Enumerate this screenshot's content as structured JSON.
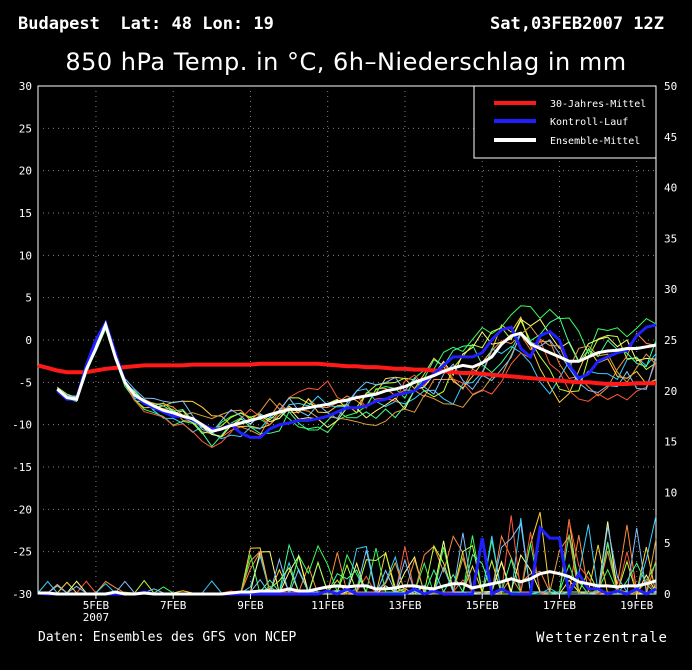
{
  "header": {
    "location": "Budapest  Lat: 48 Lon: 19",
    "run": "Sat,03FEB2007 12Z"
  },
  "footer": {
    "source": "Daten: Ensembles des GFS von NCEP",
    "brand": "Wetterzentrale"
  },
  "colors": {
    "background": "#000000",
    "climate": "#ff1a1a",
    "control": "#2020ff",
    "ensemble_mean": "#ffffff",
    "members": [
      "#ff8c3a",
      "#ffd23a",
      "#3aff5a",
      "#3ad0ff",
      "#c0ff3a",
      "#ff5a3a",
      "#ffff80",
      "#40ff90",
      "#e0a040",
      "#80c0ff"
    ]
  },
  "chart_data": {
    "type": "line",
    "title": "850 hPa Temp. in °C, 6h–Niederschlag in mm",
    "grid": true,
    "legend_position": "top-right",
    "x": {
      "type": "date",
      "start": "2007-02-03 12Z",
      "end": "2007-02-19 12Z",
      "step_hours": 6,
      "tick_labels": [
        "5FEB",
        "7FEB",
        "9FEB",
        "11FEB",
        "13FEB",
        "15FEB",
        "17FEB",
        "19FEB"
      ],
      "sublabel": "2007"
    },
    "y_left": {
      "label": "",
      "ylim": [
        -30,
        30
      ],
      "ticks": [
        30,
        25,
        20,
        15,
        10,
        5,
        0,
        -5,
        -10,
        -15,
        -20,
        -25,
        -30
      ]
    },
    "y_right": {
      "label": "",
      "ylim": [
        0,
        50
      ],
      "ticks": [
        50,
        45,
        40,
        35,
        30,
        25,
        20,
        15,
        10,
        5,
        0
      ]
    },
    "series": [
      {
        "name": "30-Jahres-Mittel",
        "axis": "left",
        "values": [
          -3,
          -3.3,
          -3.6,
          -3.8,
          -3.8,
          -3.8,
          -3.6,
          -3.4,
          -3.3,
          -3.2,
          -3.1,
          -3.0,
          -3.0,
          -3.0,
          -3.0,
          -3.0,
          -2.9,
          -2.9,
          -2.9,
          -2.9,
          -2.9,
          -2.9,
          -2.9,
          -2.8,
          -2.8,
          -2.8,
          -2.8,
          -2.8,
          -2.8,
          -2.8,
          -2.9,
          -3.0,
          -3.1,
          -3.1,
          -3.2,
          -3.2,
          -3.3,
          -3.4,
          -3.4,
          -3.5,
          -3.5,
          -3.6,
          -3.7,
          -3.8,
          -3.9,
          -3.9,
          -4.0,
          -4.1,
          -4.2,
          -4.3,
          -4.4,
          -4.5,
          -4.6,
          -4.7,
          -4.8,
          -4.9,
          -5.0,
          -5.0,
          -5.1,
          -5.2,
          -5.2,
          -5.2,
          -5.1,
          -5.1,
          -5.1
        ]
      },
      {
        "name": "Kontroll-Lauf",
        "axis": "left",
        "values": [
          null,
          null,
          -6,
          -7,
          -7,
          -3,
          0,
          2,
          -1.5,
          -5,
          -6.5,
          -7.5,
          -8,
          -8.5,
          -9,
          -9,
          -9.5,
          -10,
          -10.5,
          -10.5,
          -10,
          -11,
          -11.5,
          -11.5,
          -10.5,
          -10,
          -9.8,
          -9.5,
          -9.5,
          -9.3,
          -9,
          -8.5,
          -8,
          -8,
          -7.8,
          -7.2,
          -7,
          -6.5,
          -6.3,
          -6,
          -5,
          -4,
          -3,
          -2,
          -2,
          -2,
          -1.5,
          0,
          1.2,
          1.5,
          -1,
          -2,
          0.5,
          1,
          0,
          -3,
          -4.5,
          -4,
          -2.5,
          -2,
          -1.5,
          -1.2,
          0.5,
          1.5,
          1.8
        ]
      },
      {
        "name": "Ensemble-Mittel",
        "axis": "left",
        "values": [
          null,
          null,
          -5.8,
          -6.8,
          -7,
          -3.5,
          -1,
          1.8,
          -2,
          -5,
          -6.5,
          -7.2,
          -7.8,
          -8.3,
          -8.6,
          -9,
          -9.3,
          -10,
          -10.8,
          -10.5,
          -10.1,
          -9.8,
          -9.5,
          -9.2,
          -8.8,
          -8.5,
          -8.2,
          -8.2,
          -8,
          -7.8,
          -7.6,
          -7.3,
          -7.1,
          -6.8,
          -6.6,
          -6.4,
          -6,
          -5.8,
          -5.5,
          -5,
          -4.6,
          -4.2,
          -3.7,
          -3.3,
          -3,
          -3.2,
          -2.7,
          -2,
          -0.5,
          0.5,
          0.8,
          -0.5,
          -1,
          -1.5,
          -2,
          -2.5,
          -2.5,
          -2,
          -1.5,
          -1.3,
          -1.2,
          -1,
          -1,
          -0.8,
          -0.6
        ]
      },
      {
        "name": "Kontroll-Lauf (Niederschlag)",
        "axis": "right",
        "values": [
          0.1,
          0,
          0,
          0,
          0,
          0,
          0,
          0,
          0,
          0,
          0,
          0.2,
          0,
          0,
          0,
          0,
          0,
          0,
          0,
          0,
          0,
          0,
          0,
          0,
          0,
          0,
          0,
          0,
          0,
          0,
          0.3,
          0,
          0.5,
          0,
          0,
          0,
          0,
          0,
          0,
          0.5,
          0,
          0.3,
          0,
          0,
          0,
          0,
          5.5,
          0,
          0.5,
          0,
          0,
          0,
          6.5,
          5.5,
          5.5,
          0,
          2,
          0.5,
          0.5,
          0,
          0.3,
          0,
          0.5,
          0,
          0.5
        ]
      },
      {
        "name": "Ensemble-Mittel (Niederschlag)",
        "axis": "right",
        "values": [
          0.1,
          0.1,
          0,
          0,
          0,
          0,
          0,
          0,
          0.2,
          0,
          0,
          0.1,
          0,
          0,
          0,
          0,
          0,
          0,
          0,
          0,
          0.1,
          0.2,
          0.2,
          0.3,
          0.3,
          0.3,
          0.5,
          0.3,
          0.3,
          0.5,
          0.7,
          0.8,
          0.7,
          0.8,
          0.8,
          0.5,
          0.5,
          0.6,
          0.8,
          0.8,
          0.6,
          0.5,
          0.8,
          1.0,
          1.0,
          0.6,
          0.8,
          1.0,
          1.2,
          1.5,
          1.2,
          1.5,
          2.0,
          2.2,
          2.0,
          1.7,
          1.2,
          1.0,
          0.8,
          0.8,
          0.7,
          0.8,
          0.8,
          1.0,
          1.3
        ]
      }
    ]
  }
}
